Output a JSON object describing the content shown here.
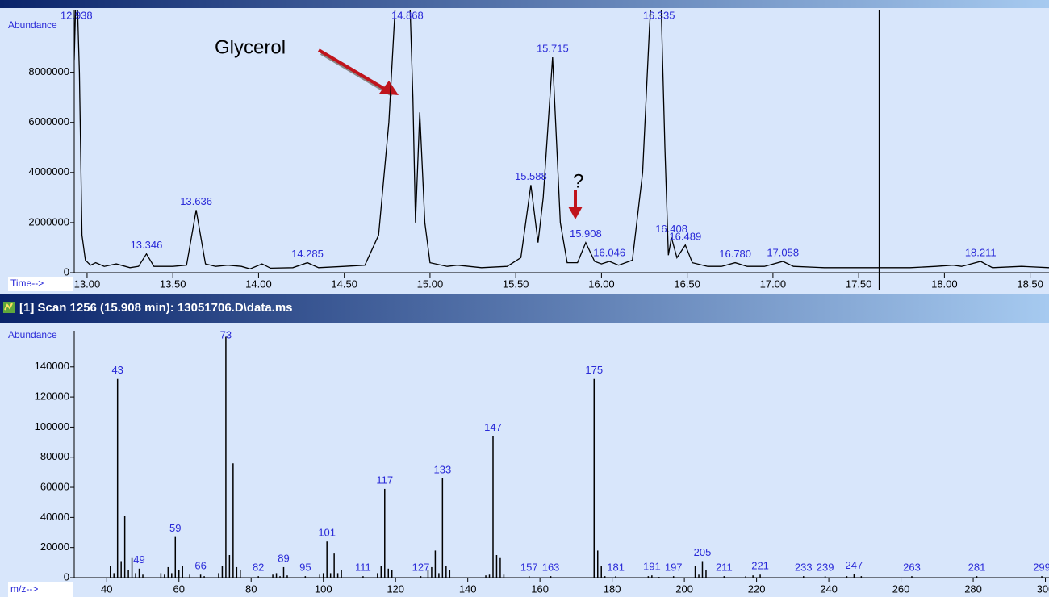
{
  "chart_data": [
    {
      "type": "line",
      "y_axis_label": "Abundance",
      "x_axis_label": "Time-->",
      "color": "#000000",
      "label_color": "#2a2ad8",
      "xlim": [
        12.925,
        18.61
      ],
      "ylim": [
        0,
        10500000
      ],
      "xticks": [
        {
          "value": 13,
          "label": "13.00"
        },
        {
          "value": 13.5,
          "label": "13.50"
        },
        {
          "value": 14,
          "label": "14.00"
        },
        {
          "value": 14.5,
          "label": "14.50"
        },
        {
          "value": 15,
          "label": "15.00"
        },
        {
          "value": 15.5,
          "label": "15.50"
        },
        {
          "value": 16,
          "label": "16.00"
        },
        {
          "value": 16.5,
          "label": "16.50"
        },
        {
          "value": 17,
          "label": "17.00"
        },
        {
          "value": 17.5,
          "label": "17.50"
        },
        {
          "value": 18,
          "label": "18.00"
        },
        {
          "value": 18.5,
          "label": "18.50"
        }
      ],
      "yticks": [
        0,
        2000000,
        4000000,
        6000000,
        8000000
      ],
      "x": [
        12.925,
        12.938,
        12.955,
        12.97,
        12.99,
        13.02,
        13.05,
        13.1,
        13.17,
        13.25,
        13.3,
        13.346,
        13.39,
        13.5,
        13.58,
        13.636,
        13.69,
        13.75,
        13.82,
        13.9,
        13.95,
        14.02,
        14.07,
        14.2,
        14.285,
        14.35,
        14.5,
        14.62,
        14.7,
        14.76,
        14.8,
        14.868,
        14.9,
        14.915,
        14.94,
        14.97,
        15.0,
        15.1,
        15.16,
        15.3,
        15.45,
        15.53,
        15.588,
        15.63,
        15.66,
        15.715,
        15.76,
        15.8,
        15.86,
        15.908,
        15.96,
        16.0,
        16.046,
        16.1,
        16.18,
        16.24,
        16.28,
        16.3,
        16.335,
        16.37,
        16.39,
        16.408,
        16.44,
        16.489,
        16.53,
        16.62,
        16.7,
        16.78,
        16.85,
        16.95,
        17.058,
        17.12,
        17.3,
        17.45,
        17.6,
        17.8,
        17.95,
        18.05,
        18.1,
        18.211,
        18.28,
        18.45,
        18.61
      ],
      "values": [
        8500000,
        12000000,
        8000000,
        1500000,
        500000,
        300000,
        400000,
        250000,
        350000,
        200000,
        250000,
        750000,
        250000,
        250000,
        300000,
        2500000,
        350000,
        250000,
        300000,
        250000,
        150000,
        350000,
        180000,
        200000,
        400000,
        200000,
        250000,
        300000,
        1500000,
        6000000,
        11000000,
        14000000,
        7000000,
        2000000,
        6400000,
        2000000,
        400000,
        250000,
        300000,
        200000,
        250000,
        600000,
        3500000,
        1200000,
        3000000,
        8600000,
        2000000,
        400000,
        400000,
        1200000,
        450000,
        350000,
        450000,
        300000,
        500000,
        4000000,
        9800000,
        12000000,
        14000000,
        5000000,
        700000,
        1400000,
        600000,
        1100000,
        400000,
        250000,
        250000,
        400000,
        250000,
        250000,
        450000,
        250000,
        200000,
        200000,
        200000,
        200000,
        250000,
        300000,
        250000,
        450000,
        200000,
        250000,
        200000
      ],
      "peaks": {
        "x": [
          12.938,
          13.346,
          13.636,
          14.285,
          14.868,
          15.588,
          15.715,
          15.908,
          16.046,
          16.335,
          16.408,
          16.489,
          16.78,
          17.058,
          18.211
        ],
        "x_labels": [
          "12.938",
          "13.346",
          "13.636",
          "14.285",
          "14.868",
          "15.588",
          "15.715",
          "15.908",
          "16.046",
          "16.335",
          "16.408",
          "16.489",
          "16.780",
          "17.058",
          "18.211"
        ]
      },
      "cursor_x": 17.62,
      "annotations": [
        "Glycerol",
        "?"
      ]
    },
    {
      "type": "bar",
      "title": "[1] Scan 1256 (15.908 min): 13051706.D\\data.ms",
      "y_axis_label": "Abundance",
      "x_axis_label": "m/z-->",
      "color": "#000000",
      "label_color": "#2a2ad8",
      "xlim": [
        31,
        301
      ],
      "ylim": [
        0,
        164000
      ],
      "xticks": [
        40,
        60,
        80,
        100,
        120,
        140,
        160,
        180,
        200,
        220,
        240,
        260,
        280,
        300
      ],
      "yticks": [
        0,
        20000,
        40000,
        60000,
        80000,
        100000,
        120000,
        140000
      ],
      "x": [
        41,
        42,
        43,
        44,
        45,
        46,
        47,
        48,
        49,
        50,
        55,
        56,
        57,
        58,
        59,
        60,
        61,
        63,
        66,
        67,
        71,
        72,
        73,
        74,
        75,
        76,
        77,
        82,
        86,
        87,
        88,
        89,
        90,
        95,
        99,
        100,
        101,
        102,
        103,
        104,
        105,
        111,
        115,
        116,
        117,
        118,
        119,
        127,
        129,
        130,
        131,
        132,
        133,
        134,
        135,
        145,
        146,
        147,
        148,
        149,
        150,
        157,
        163,
        175,
        176,
        177,
        178,
        181,
        190,
        191,
        193,
        197,
        203,
        204,
        205,
        206,
        211,
        217,
        219,
        221,
        233,
        239,
        245,
        247,
        249,
        263,
        281,
        299
      ],
      "values": [
        8000,
        3000,
        132000,
        11000,
        41000,
        5000,
        13000,
        3000,
        6000,
        2000,
        3000,
        2000,
        7000,
        3000,
        27000,
        5000,
        8000,
        2000,
        2000,
        1000,
        3000,
        8000,
        160000,
        15000,
        76000,
        7000,
        5000,
        1000,
        2000,
        3000,
        1000,
        7000,
        1500,
        1000,
        2000,
        3000,
        24000,
        3000,
        16000,
        3000,
        5000,
        1000,
        3000,
        8000,
        59000,
        6000,
        5000,
        1000,
        5000,
        7000,
        18000,
        3000,
        66000,
        8000,
        5000,
        1500,
        2000,
        94000,
        15000,
        13000,
        2000,
        1000,
        1000,
        132000,
        18000,
        8000,
        1000,
        1000,
        1000,
        1500,
        500,
        1000,
        8000,
        2000,
        11000,
        5000,
        1000,
        1000,
        1500,
        2000,
        1000,
        1000,
        1000,
        2500,
        1000,
        1000,
        1000,
        1000
      ],
      "labels": [
        null,
        null,
        "43",
        null,
        null,
        null,
        null,
        null,
        "49",
        null,
        null,
        null,
        null,
        null,
        "59",
        null,
        null,
        null,
        "66",
        null,
        null,
        null,
        "73",
        null,
        null,
        null,
        null,
        "82",
        null,
        null,
        null,
        "89",
        null,
        "95",
        null,
        null,
        "101",
        null,
        null,
        null,
        null,
        "111",
        null,
        null,
        "117",
        null,
        null,
        "127",
        null,
        null,
        null,
        null,
        "133",
        null,
        null,
        null,
        null,
        "147",
        null,
        null,
        null,
        "157",
        "163",
        "175",
        null,
        null,
        null,
        "181",
        null,
        "191",
        null,
        "197",
        null,
        null,
        "205",
        null,
        "211",
        null,
        null,
        "221",
        "233",
        "239",
        null,
        "247",
        null,
        "263",
        "281",
        "299"
      ]
    }
  ]
}
